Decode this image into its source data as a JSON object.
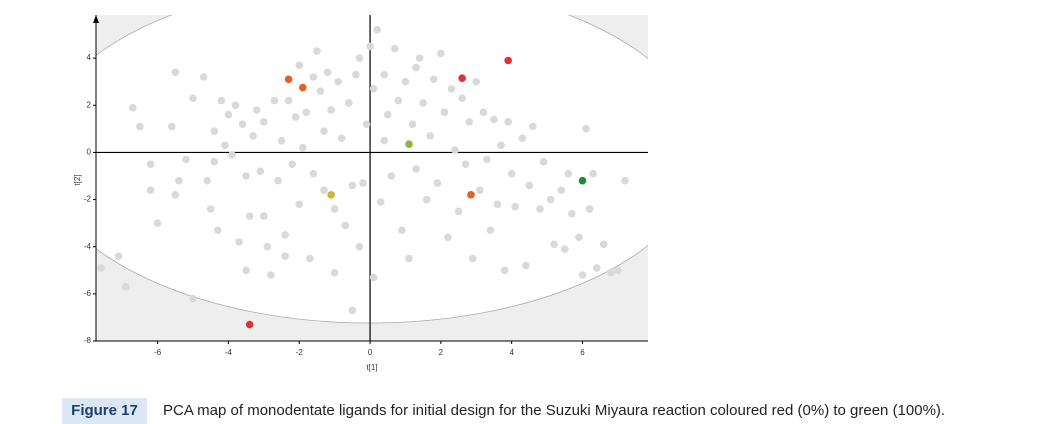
{
  "chart_data": {
    "type": "scatter",
    "xlabel": "t[1]",
    "ylabel": "t[2]",
    "xlim": [
      -7.74,
      7.85
    ],
    "ylim": [
      -8,
      5.83
    ],
    "xticks": [
      -6,
      -4,
      -2,
      0,
      2,
      4,
      6
    ],
    "yticks": [
      -8,
      -6,
      -4,
      -2,
      0,
      2,
      4
    ],
    "series": [
      {
        "color": "#d9d9d9",
        "x": [
          -7.6,
          -7.1,
          -6.9,
          -6.7,
          -6.5,
          -6.2,
          -6,
          -5.6,
          -5.5,
          -5.4,
          -5.5,
          -5.2,
          -5,
          -5,
          -4.7,
          -4.6,
          -4.5,
          -4.4,
          -4.3,
          -4.2,
          -4.1,
          -4,
          -3.9,
          -3.8,
          -3.7,
          -3.6,
          -3.5,
          -3.5,
          -3.4,
          -3.3,
          -3.2,
          -3.1,
          -3,
          -3,
          -2.9,
          -2.8,
          -2.7,
          -2.6,
          -2.5,
          -2.4,
          -2.3,
          -2.2,
          -2.1,
          -2,
          -2,
          -1.9,
          -1.8,
          -1.7,
          -1.6,
          -1.6,
          -1.5,
          -1.4,
          -1.3,
          -1.3,
          -1.2,
          -1.1,
          -1,
          -1,
          -0.9,
          -0.8,
          -0.7,
          -0.6,
          -0.5,
          -0.5,
          -0.4,
          -0.3,
          -0.3,
          -0.2,
          -0.1,
          0,
          0.1,
          0.1,
          0.2,
          0.3,
          0.4,
          0.4,
          0.5,
          0.6,
          0.7,
          0.8,
          0.9,
          1,
          1.1,
          1.2,
          1.3,
          1.3,
          1.4,
          1.5,
          1.6,
          1.7,
          1.8,
          1.9,
          2,
          2.1,
          2.2,
          2.3,
          2.4,
          2.5,
          2.6,
          2.7,
          2.8,
          2.9,
          3,
          3.1,
          3.2,
          3.3,
          3.4,
          3.5,
          3.6,
          3.7,
          3.8,
          3.9,
          4,
          4.1,
          4.3,
          4.4,
          4.5,
          4.6,
          4.8,
          4.9,
          5.1,
          5.2,
          5.4,
          5.5,
          5.6,
          5.7,
          5.9,
          6,
          6.2,
          6.3,
          6.4,
          6.6,
          6.8,
          7.0,
          7.2,
          6.1,
          -2.4,
          -6.2,
          -4.4
        ],
        "values": [
          -4.9,
          -4.4,
          -5.7,
          1.9,
          1.1,
          -0.5,
          -3,
          1.1,
          -1.8,
          -1.2,
          3.4,
          -0.3,
          2.3,
          -6.2,
          3.2,
          -1.2,
          -2.4,
          0.9,
          -3.3,
          2.2,
          0.3,
          1.6,
          -0.1,
          2.0,
          -3.8,
          1.2,
          -1.0,
          -5.0,
          -2.7,
          0.7,
          1.8,
          -0.8,
          -2.7,
          1.3,
          -4.0,
          -5.2,
          2.2,
          -1.2,
          0.5,
          -3.5,
          2.2,
          -0.5,
          1.5,
          -2.2,
          3.7,
          0.2,
          1.7,
          -4.5,
          3.2,
          -0.9,
          4.3,
          2.6,
          -1.6,
          0.9,
          3.4,
          1.8,
          -2.4,
          -5.1,
          3.0,
          0.6,
          -3.1,
          2.1,
          -6.7,
          -1.4,
          3.3,
          -4.0,
          4.0,
          -1.3,
          1.2,
          4.5,
          -5.3,
          2.7,
          5.2,
          -2.1,
          0.5,
          3.3,
          1.6,
          -1.0,
          4.4,
          2.2,
          -3.3,
          3.0,
          -4.5,
          1.2,
          -0.7,
          3.6,
          4.0,
          2.1,
          -2.0,
          0.7,
          3.1,
          -1.3,
          4.2,
          1.7,
          -3.6,
          2.7,
          0.1,
          -2.5,
          2.3,
          -0.5,
          1.3,
          -4.5,
          3.0,
          -1.6,
          1.7,
          -0.3,
          -3.3,
          1.4,
          -2.2,
          0.3,
          -5.0,
          1.3,
          -0.9,
          -2.3,
          0.6,
          -4.8,
          -1.4,
          1.1,
          -2.4,
          -0.4,
          -2.0,
          -3.9,
          -1.6,
          -4.1,
          -0.9,
          -2.6,
          -3.6,
          -5.2,
          -2.4,
          -0.9,
          -4.9,
          -3.9,
          -5.1,
          -5.0,
          -1.2,
          1.0,
          -4.4,
          -1.6,
          -0.4
        ]
      },
      {
        "color": "#e5302f",
        "x": [
          2.6,
          3.9,
          -3.4
        ],
        "values": [
          3.15,
          3.9,
          -7.3
        ]
      },
      {
        "color": "#e0622a",
        "x": [
          -2.3,
          -1.9,
          2.85
        ],
        "values": [
          3.1,
          2.75,
          -1.8
        ]
      },
      {
        "color": "#c9b934",
        "x": [
          -1.1
        ],
        "values": [
          -1.8
        ]
      },
      {
        "color": "#8ab83f",
        "x": [
          1.1
        ],
        "values": [
          0.35
        ]
      },
      {
        "color": "#1b8a3c",
        "x": [
          6.0
        ],
        "values": [
          -1.2
        ]
      }
    ]
  },
  "caption": {
    "label": "Figure 17",
    "text": "PCA map of monodentate ligands for initial design for the Suzuki Miyaura reaction coloured red (0%) to green (100%)."
  }
}
